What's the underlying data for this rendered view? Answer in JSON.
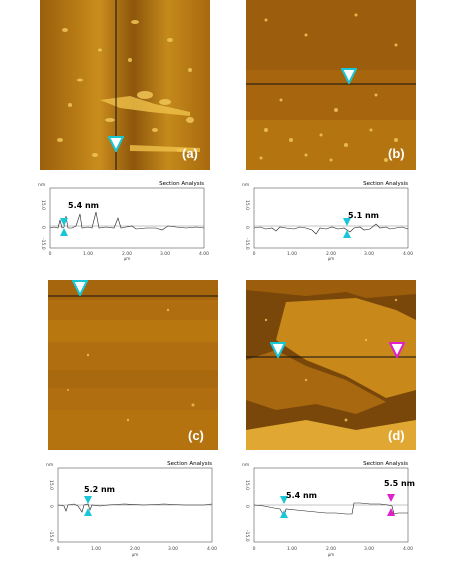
{
  "colors": {
    "afm_dark": "#5e3608",
    "afm_mid": "#b8770f",
    "afm_light": "#f0c24a",
    "cursor_cyan": "#19c6d6",
    "cursor_magenta": "#e020c8",
    "profile_line": "#202020"
  },
  "panels": [
    {
      "id": "a",
      "label": "(a)",
      "height_label": "5.4 nm",
      "section_title": "Section Analysis",
      "yticks": [
        "15.0",
        "0",
        "-15.0"
      ],
      "yunit": "nm",
      "xticks": [
        "0",
        "1.00",
        "2.00",
        "3.00",
        "4.00"
      ],
      "xunit": "µm"
    },
    {
      "id": "b",
      "label": "(b)",
      "height_label": "5.1 nm",
      "section_title": "Section Analysis",
      "yticks": [
        "15.0",
        "0",
        "-15.0"
      ],
      "yunit": "nm",
      "xticks": [
        "0",
        "1.00",
        "2.00",
        "3.00",
        "4.00"
      ],
      "xunit": "µm"
    },
    {
      "id": "c",
      "label": "(c)",
      "height_label": "5.2 nm",
      "section_title": "Section Analysis",
      "yticks": [
        "15.0",
        "0",
        "-15.0"
      ],
      "yunit": "nm",
      "xticks": [
        "0",
        "1.00",
        "2.00",
        "3.00",
        "4.00"
      ],
      "xunit": "µm"
    },
    {
      "id": "d",
      "label": "(d)",
      "height_label": "5.4 nm",
      "height_label_2": "5.5 nm",
      "section_title": "Section Analysis",
      "yticks": [
        "15.0",
        "0",
        "-15.0"
      ],
      "yunit": "nm",
      "xticks": [
        "0",
        "1.00",
        "2.00",
        "3.00",
        "4.00"
      ],
      "xunit": "µm"
    }
  ]
}
